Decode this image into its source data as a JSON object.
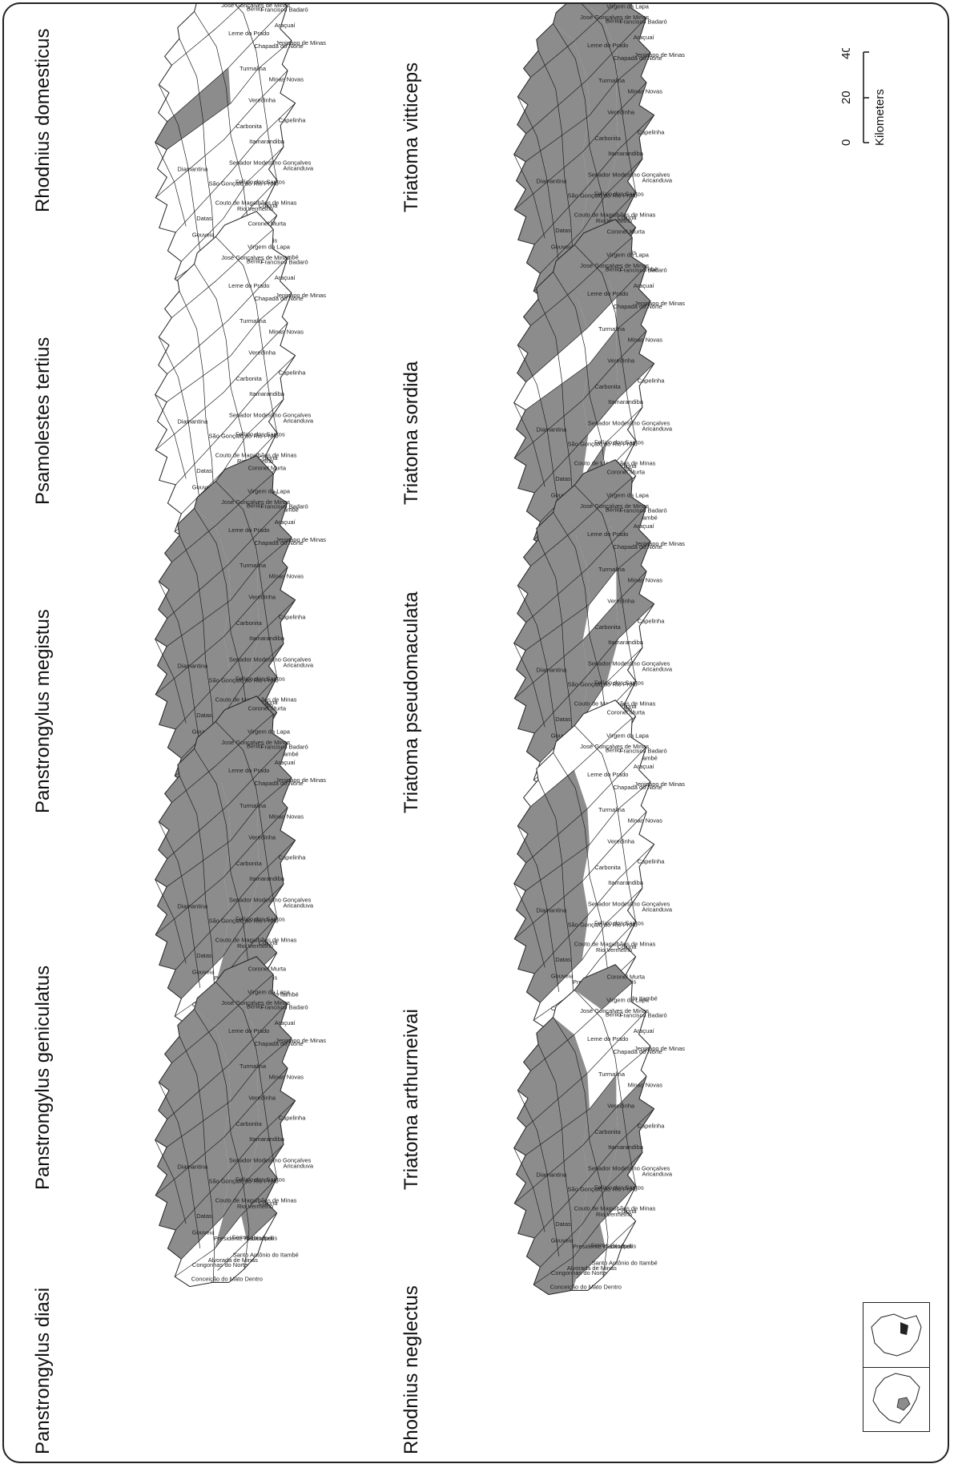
{
  "figure": {
    "panels": [
      {
        "title": "Rhodnius domesticus",
        "shaded": [
          7
        ],
        "grid": "domesticus"
      },
      {
        "title": "Psamolestes tertius",
        "shaded": [],
        "grid": "tertius"
      },
      {
        "title": "Panstrongylus megistus",
        "shaded": "all",
        "grid": "megistus"
      },
      {
        "title": "Panstrongylus geniculatus",
        "shaded": "most",
        "grid": "geniculatus"
      },
      {
        "title": "Panstrongylus diasi",
        "shaded": "most",
        "grid": "diasi"
      },
      {
        "title": "Triatoma vitticeps",
        "shaded": "all",
        "grid": "vitticeps"
      },
      {
        "title": "Triatoma sordida",
        "shaded": "partial",
        "grid": "sordida"
      },
      {
        "title": "Triatoma pseudomaculata",
        "shaded": "partial",
        "grid": "pseudomaculata"
      },
      {
        "title": "Triatoma arthurneivai",
        "shaded": "small",
        "grid": "arthurneivai"
      },
      {
        "title": "Rhodnius neglectus",
        "shaded": "partial",
        "grid": "neglectus"
      }
    ],
    "municipalities": [
      "Coronel Murta",
      "Virgem da Lapa",
      "Berilo",
      "Francisco Badaró",
      "Araçuaí",
      "Jenipapo de Minas",
      "Chapada do Norte",
      "Minas Novas",
      "José Gonçalves de Minas",
      "Leme do Prado",
      "Turmalina",
      "Capelinha",
      "Veredinha",
      "Carbonita",
      "Itamarandiba",
      "Aricanduva",
      "Senador Modestino Gonçalves",
      "Felício dos Santos",
      "Coluna",
      "Rio Vermelho",
      "Sabinópolis",
      "São Gonçalo do Rio Preto",
      "Couto de Magalhães de Minas",
      "Diamantina",
      "Datas",
      "Gouveia",
      "Presidente Kubitschek",
      "Serro",
      "Santo Antônio do Itambé",
      "Alvorada de Minas",
      "Congonhas do Norte",
      "Conceição do Mato Dentro"
    ],
    "scale": {
      "ticks": [
        "0",
        "20",
        "40"
      ],
      "unit": "Kilometers"
    },
    "colors": {
      "shade": "#8c8c8c",
      "outline": "#222222",
      "unshaded": "#ffffff"
    }
  }
}
